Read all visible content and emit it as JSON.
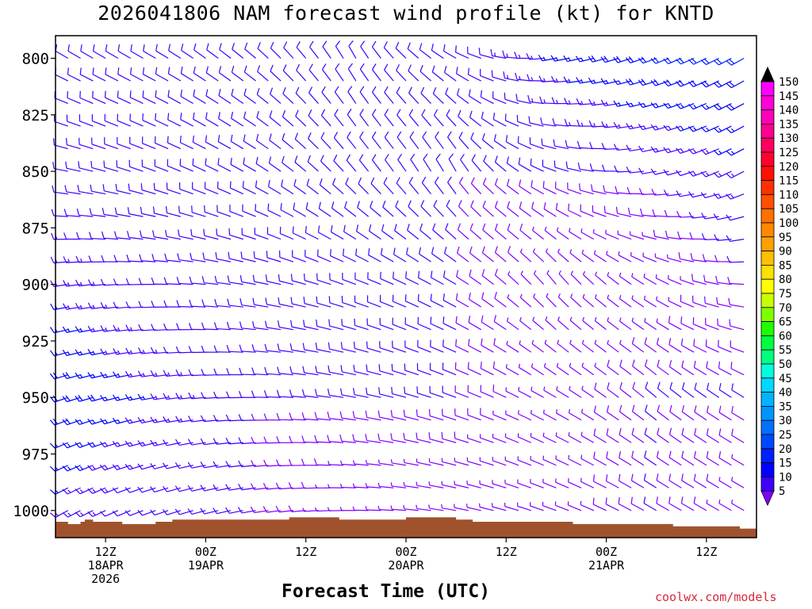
{
  "title": "2026041806 NAM forecast wind profile (kt) for KNTD",
  "credit": "coolwx.com/models",
  "chart_data": {
    "type": "wind-barb-time-height",
    "title": "2026041806 NAM forecast wind profile (kt) for KNTD",
    "xlabel": "Forecast Time (UTC)",
    "ylabel": "",
    "units": "kt",
    "x_range_hours": [
      0,
      84
    ],
    "x_ticks": [
      {
        "hour": 6,
        "lines": [
          "12Z",
          "18APR",
          "2026"
        ]
      },
      {
        "hour": 18,
        "lines": [
          "00Z",
          "19APR"
        ]
      },
      {
        "hour": 30,
        "lines": [
          "12Z"
        ]
      },
      {
        "hour": 42,
        "lines": [
          "00Z",
          "20APR"
        ]
      },
      {
        "hour": 54,
        "lines": [
          "12Z"
        ]
      },
      {
        "hour": 66,
        "lines": [
          "00Z",
          "21APR"
        ]
      },
      {
        "hour": 78,
        "lines": [
          "12Z"
        ]
      }
    ],
    "y_range_hpa": [
      790,
      1012
    ],
    "y_ticks": [
      800,
      825,
      850,
      875,
      900,
      925,
      950,
      975,
      1000
    ],
    "pressure_levels": [
      800,
      810,
      820,
      830,
      840,
      850,
      860,
      870,
      880,
      890,
      900,
      910,
      920,
      930,
      940,
      950,
      960,
      970,
      980,
      990,
      1000
    ],
    "surface_pressure": {
      "hours": [
        0,
        1.5,
        3,
        3.5,
        4.5,
        6,
        8,
        10,
        12,
        14,
        16,
        18,
        22,
        26,
        28,
        30,
        34,
        38,
        42,
        46,
        48,
        50,
        54,
        58,
        60,
        62,
        64,
        66,
        70,
        74,
        78,
        80,
        82,
        84
      ],
      "hpa": [
        1005,
        1006,
        1005,
        1004,
        1005,
        1005,
        1006,
        1006,
        1005,
        1004,
        1004,
        1004,
        1004,
        1004,
        1003,
        1003,
        1004,
        1004,
        1003,
        1003,
        1004,
        1005,
        1005,
        1005,
        1005,
        1006,
        1006,
        1006,
        1006,
        1007,
        1007,
        1007,
        1008,
        1009
      ]
    },
    "colorbar": {
      "values": [
        5,
        10,
        15,
        20,
        25,
        30,
        35,
        40,
        45,
        50,
        55,
        60,
        65,
        70,
        75,
        80,
        85,
        90,
        95,
        100,
        105,
        110,
        115,
        120,
        125,
        130,
        135,
        140,
        145,
        150
      ],
      "colors": [
        "#8000ff",
        "#4000ff",
        "#0000ff",
        "#0020ff",
        "#0048ff",
        "#0070ff",
        "#0094ff",
        "#00b4ff",
        "#00d8ff",
        "#00ffe0",
        "#00ff80",
        "#00ff40",
        "#20ff00",
        "#80ff00",
        "#c8ff00",
        "#ffff00",
        "#ffe000",
        "#ffc000",
        "#ffa000",
        "#ff8800",
        "#ff7000",
        "#ff5000",
        "#ff3000",
        "#ff1000",
        "#ff0030",
        "#ff0060",
        "#ff0090",
        "#ff00b8",
        "#ff00d8",
        "#ff00ff"
      ]
    },
    "wind_samples": {
      "hours": [
        0,
        12,
        24,
        36,
        48,
        60,
        72,
        84
      ],
      "levels": [
        800,
        850,
        900,
        950,
        1000
      ],
      "direction_deg": [
        [
          300,
          300,
          310,
          330,
          300,
          260,
          250,
          240
        ],
        [
          280,
          290,
          300,
          320,
          330,
          290,
          260,
          240
        ],
        [
          260,
          270,
          280,
          290,
          300,
          320,
          300,
          270
        ],
        [
          250,
          260,
          270,
          280,
          290,
          300,
          310,
          300
        ],
        [
          240,
          250,
          260,
          270,
          280,
          290,
          300,
          300
        ]
      ],
      "speed_kt": [
        [
          10,
          10,
          10,
          10,
          10,
          15,
          20,
          20
        ],
        [
          10,
          10,
          10,
          10,
          10,
          10,
          10,
          15
        ],
        [
          15,
          10,
          10,
          10,
          10,
          5,
          5,
          10
        ],
        [
          20,
          15,
          10,
          10,
          10,
          5,
          10,
          10
        ],
        [
          15,
          10,
          10,
          5,
          5,
          5,
          10,
          5
        ]
      ]
    }
  }
}
